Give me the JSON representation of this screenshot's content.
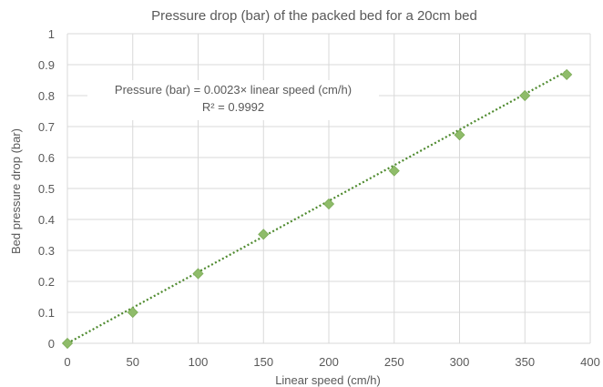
{
  "chart_data": {
    "type": "scatter",
    "title": "Pressure drop (bar) of the packed bed for a 20cm bed",
    "xlabel": "Linear speed (cm/h)",
    "ylabel": "Bed pressure drop (bar)",
    "xlim": [
      0,
      400
    ],
    "ylim": [
      0,
      1
    ],
    "xticks": [
      0,
      50,
      100,
      150,
      200,
      250,
      300,
      350,
      400
    ],
    "yticks": [
      0,
      0.1,
      0.2,
      0.3,
      0.4,
      0.5,
      0.6,
      0.7,
      0.8,
      0.9,
      1
    ],
    "grid": true,
    "series": [
      {
        "x": [
          0,
          50,
          100,
          150,
          200,
          250,
          300,
          350,
          382
        ],
        "y": [
          0,
          0.1,
          0.225,
          0.352,
          0.45,
          0.557,
          0.673,
          0.8,
          0.868
        ],
        "marker": "diamond",
        "color": "#8fbc6a"
      }
    ],
    "trendline": {
      "type": "linear",
      "slope": 0.0023,
      "intercept": 0,
      "x_range": [
        0,
        382
      ],
      "style": "dotted",
      "color": "#4e8a2e"
    },
    "annotation": {
      "equation": "Pressure (bar) = 0.0023× linear speed (cm/h)",
      "r2": "R² = 0.9992"
    }
  }
}
